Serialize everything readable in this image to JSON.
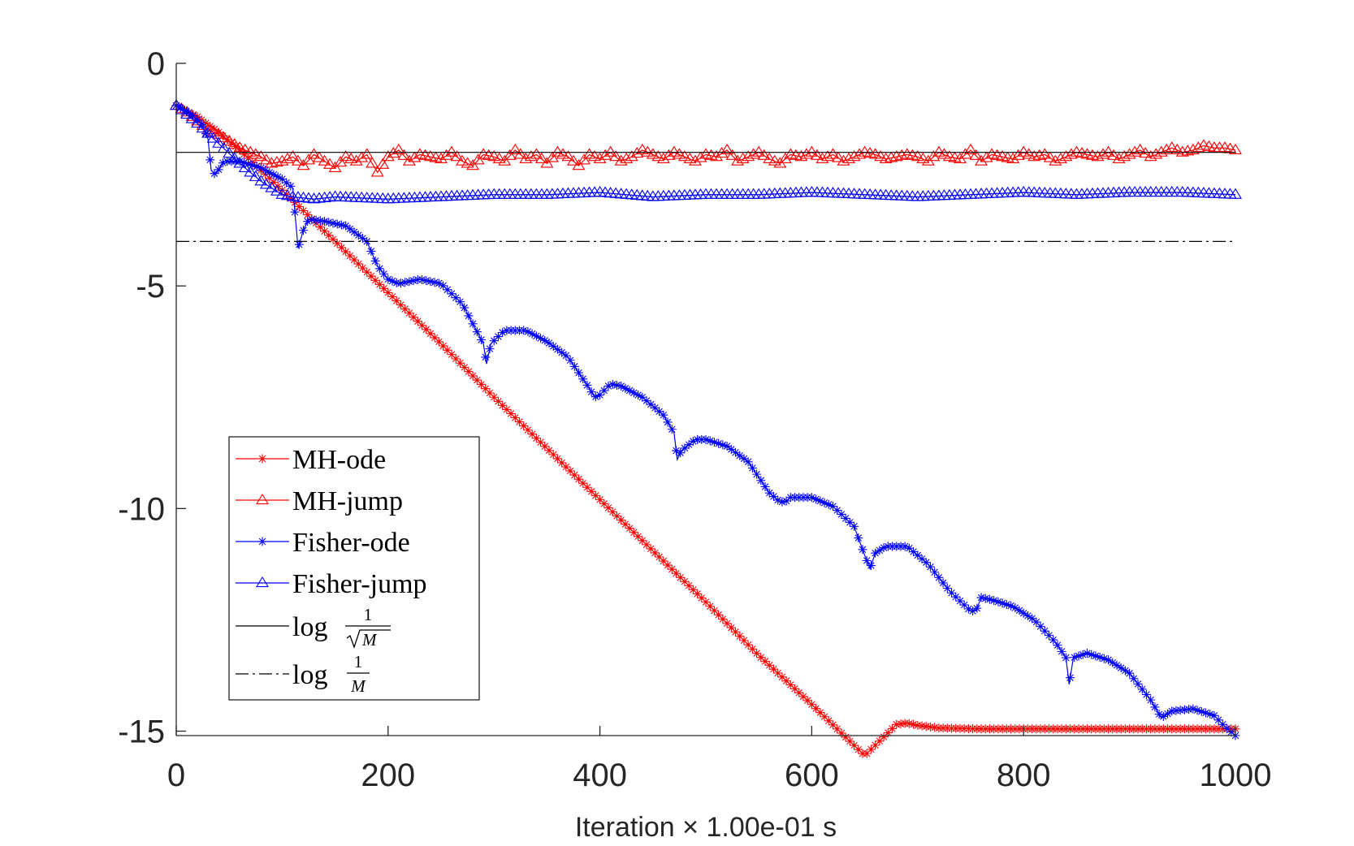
{
  "chart_data": {
    "type": "line",
    "title": "",
    "xlabel": "Iteration × 1.00e-01 s",
    "ylabel": "",
    "xlim": [
      0,
      1000
    ],
    "ylim": [
      -15.1,
      0
    ],
    "xticks": [
      0,
      200,
      400,
      600,
      800,
      1000
    ],
    "xtick_labels": [
      "0",
      "200",
      "400",
      "600",
      "800",
      "1000"
    ],
    "yticks": [
      0,
      -5,
      -10,
      -15
    ],
    "ytick_labels": [
      "0",
      "-5",
      "-10",
      "-15"
    ],
    "grid": false,
    "legend_position": "lower-left",
    "legend_labels": {
      "mh_ode": "MH-ode",
      "mh_jump": "MH-jump",
      "fisher_ode": "Fisher-ode",
      "fisher_jump": "Fisher-jump",
      "log_word": "log",
      "frac_num": "1",
      "frac_den_sqrt": "M",
      "frac_den": "M"
    },
    "series": [
      {
        "name": "MH-ode",
        "color": "#ff0000",
        "marker": "star",
        "linestyle": "solid",
        "x": [
          0,
          20,
          40,
          60,
          80,
          100,
          150,
          200,
          250,
          300,
          350,
          400,
          450,
          500,
          550,
          600,
          650,
          680,
          690,
          700,
          720,
          760,
          800,
          900,
          1000
        ],
        "y": [
          -0.95,
          -1.2,
          -1.55,
          -1.95,
          -2.4,
          -2.85,
          -4.0,
          -5.15,
          -6.3,
          -7.5,
          -8.65,
          -9.8,
          -10.95,
          -12.1,
          -13.3,
          -14.4,
          -15.55,
          -14.85,
          -14.82,
          -14.87,
          -14.93,
          -14.95,
          -14.95,
          -14.95,
          -14.95
        ]
      },
      {
        "name": "MH-jump",
        "color": "#ff0000",
        "marker": "triangle",
        "linestyle": "solid",
        "x": [
          0,
          10,
          20,
          30,
          40,
          50,
          60,
          70,
          80,
          90,
          100,
          110,
          120,
          130,
          140,
          150,
          160,
          170,
          180,
          190,
          200,
          210,
          220,
          230,
          240,
          250,
          260,
          270,
          280,
          290,
          300,
          310,
          320,
          330,
          340,
          350,
          360,
          370,
          380,
          390,
          400,
          410,
          420,
          430,
          440,
          450,
          460,
          470,
          480,
          490,
          500,
          510,
          520,
          530,
          540,
          550,
          560,
          570,
          580,
          590,
          600,
          610,
          620,
          630,
          640,
          650,
          660,
          670,
          680,
          690,
          700,
          710,
          720,
          730,
          740,
          750,
          760,
          770,
          780,
          790,
          800,
          810,
          820,
          830,
          840,
          850,
          860,
          870,
          880,
          890,
          900,
          910,
          920,
          930,
          940,
          950,
          960,
          970,
          980,
          990,
          1000
        ],
        "y": [
          -0.95,
          -1.1,
          -1.3,
          -1.5,
          -1.6,
          -1.75,
          -1.9,
          -2.0,
          -2.1,
          -2.25,
          -2.2,
          -2.1,
          -2.3,
          -2.05,
          -2.2,
          -2.35,
          -2.1,
          -2.2,
          -2.05,
          -2.45,
          -2.1,
          -1.95,
          -2.2,
          -2.05,
          -2.1,
          -2.15,
          -2.0,
          -2.2,
          -2.3,
          -2.05,
          -2.1,
          -2.2,
          -1.95,
          -2.15,
          -2.05,
          -2.25,
          -2.0,
          -2.1,
          -2.3,
          -2.05,
          -2.15,
          -2.0,
          -2.2,
          -2.1,
          -1.95,
          -2.05,
          -2.15,
          -2.0,
          -2.1,
          -2.2,
          -2.05,
          -2.1,
          -1.95,
          -2.2,
          -2.1,
          -2.0,
          -2.15,
          -2.25,
          -2.05,
          -2.1,
          -2.0,
          -2.15,
          -2.05,
          -2.2,
          -2.1,
          -2.0,
          -2.05,
          -2.15,
          -2.1,
          -2.05,
          -2.1,
          -2.2,
          -2.0,
          -2.1,
          -2.15,
          -1.95,
          -2.2,
          -2.05,
          -2.1,
          -2.15,
          -2.0,
          -2.1,
          -2.05,
          -2.2,
          -2.1,
          -2.0,
          -2.05,
          -2.1,
          -2.0,
          -2.15,
          -2.05,
          -1.95,
          -2.1,
          -2.0,
          -1.9,
          -2.0,
          -1.95,
          -1.85,
          -1.9,
          -1.9,
          -1.95
        ]
      },
      {
        "name": "Fisher-ode",
        "color": "#0000ff",
        "marker": "star",
        "linestyle": "solid",
        "x": [
          0,
          15,
          25,
          30,
          33,
          37,
          45,
          60,
          80,
          100,
          110,
          115,
          120,
          125,
          140,
          160,
          180,
          190,
          200,
          210,
          230,
          250,
          270,
          290,
          293,
          297,
          310,
          330,
          350,
          370,
          390,
          395,
          400,
          410,
          420,
          440,
          460,
          470,
          473,
          477,
          490,
          500,
          520,
          540,
          560,
          570,
          575,
          580,
          600,
          620,
          640,
          650,
          655,
          660,
          670,
          690,
          710,
          730,
          750,
          755,
          760,
          770,
          790,
          810,
          830,
          840,
          843,
          847,
          860,
          880,
          900,
          920,
          930,
          940,
          960,
          980,
          990,
          1000
        ],
        "y": [
          -0.95,
          -1.15,
          -1.4,
          -1.7,
          -2.4,
          -2.5,
          -2.2,
          -2.2,
          -2.35,
          -2.6,
          -2.8,
          -4.15,
          -3.75,
          -3.5,
          -3.55,
          -3.65,
          -4.0,
          -4.55,
          -4.85,
          -4.95,
          -4.85,
          -4.95,
          -5.4,
          -6.3,
          -6.75,
          -6.3,
          -6.0,
          -6.0,
          -6.25,
          -6.6,
          -7.3,
          -7.5,
          -7.45,
          -7.2,
          -7.25,
          -7.5,
          -7.9,
          -8.3,
          -8.9,
          -8.7,
          -8.45,
          -8.45,
          -8.6,
          -8.95,
          -9.65,
          -9.85,
          -9.85,
          -9.75,
          -9.75,
          -9.95,
          -10.4,
          -11.05,
          -11.35,
          -11.0,
          -10.85,
          -10.85,
          -11.25,
          -11.85,
          -12.3,
          -12.3,
          -12.0,
          -12.05,
          -12.2,
          -12.5,
          -13.0,
          -13.35,
          -13.95,
          -13.35,
          -13.25,
          -13.4,
          -13.7,
          -14.3,
          -14.7,
          -14.55,
          -14.5,
          -14.65,
          -14.9,
          -15.1
        ]
      },
      {
        "name": "Fisher-jump",
        "color": "#0000ff",
        "marker": "triangle",
        "linestyle": "solid",
        "x": [
          0,
          20,
          40,
          60,
          80,
          100,
          110,
          130,
          150,
          200,
          250,
          300,
          350,
          400,
          450,
          500,
          550,
          600,
          650,
          700,
          750,
          800,
          850,
          900,
          950,
          1000
        ],
        "y": [
          -0.95,
          -1.35,
          -1.8,
          -2.25,
          -2.65,
          -2.95,
          -3.0,
          -3.05,
          -3.0,
          -3.05,
          -3.0,
          -2.95,
          -2.95,
          -2.9,
          -3.0,
          -2.95,
          -2.95,
          -2.9,
          -2.95,
          -3.0,
          -2.95,
          -2.9,
          -2.95,
          -2.9,
          -2.9,
          -2.95
        ]
      },
      {
        "name": "log 1/√M",
        "color": "#000000",
        "marker": "none",
        "linestyle": "solid",
        "x": [
          0,
          1000
        ],
        "y": [
          -2.0,
          -2.0
        ]
      },
      {
        "name": "log 1/M",
        "color": "#000000",
        "marker": "none",
        "linestyle": "dashdot",
        "x": [
          0,
          1000
        ],
        "y": [
          -4.0,
          -4.0
        ]
      }
    ]
  }
}
